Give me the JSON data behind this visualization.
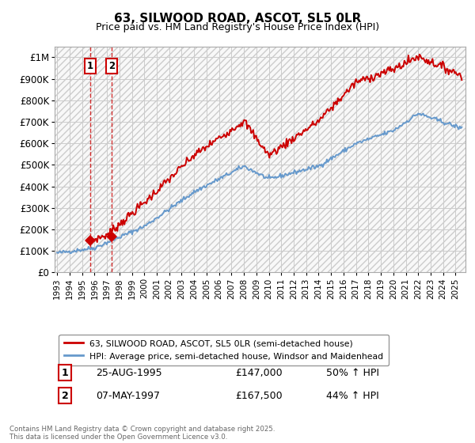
{
  "title1": "63, SILWOOD ROAD, ASCOT, SL5 0LR",
  "title2": "Price paid vs. HM Land Registry's House Price Index (HPI)",
  "legend_line1": "63, SILWOOD ROAD, ASCOT, SL5 0LR (semi-detached house)",
  "legend_line2": "HPI: Average price, semi-detached house, Windsor and Maidenhead",
  "footer": "Contains HM Land Registry data © Crown copyright and database right 2025.\nThis data is licensed under the Open Government Licence v3.0.",
  "sale1_date": "25-AUG-1995",
  "sale1_price": 147000,
  "sale1_label": "1",
  "sale1_pct": "50% ↑ HPI",
  "sale2_date": "07-MAY-1997",
  "sale2_price": 167500,
  "sale2_label": "2",
  "sale2_pct": "44% ↑ HPI",
  "red_color": "#cc0000",
  "blue_color": "#6699cc",
  "background_color": "#f8f8f8",
  "grid_color": "#cccccc",
  "ylim": [
    0,
    1050000
  ],
  "xlim_start": 1992.8,
  "xlim_end": 2025.8,
  "sale1_x": 1995.65,
  "sale1_y": 147000,
  "sale2_x": 1997.36,
  "sale2_y": 167500
}
